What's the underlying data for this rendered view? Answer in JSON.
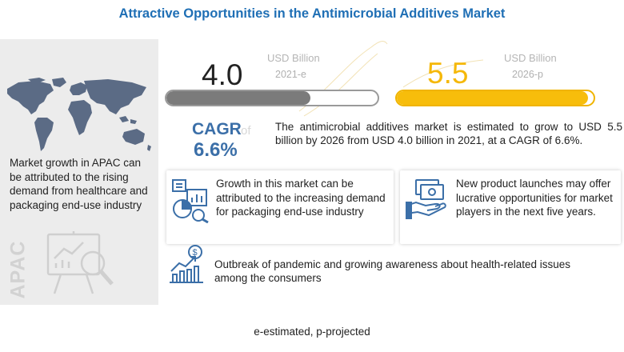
{
  "title": "Attractive Opportunities in the Antimicrobial Additives Market",
  "left_panel": {
    "text": "Market growth in APAC can be attributed to the rising demand from healthcare and packaging end-use industry",
    "region_label": "APAC",
    "map_icon": "world-map-icon",
    "board_icon": "presentation-board-magnifier-icon"
  },
  "market_size": {
    "current": {
      "value": "4.0",
      "unit": "USD Billion",
      "year": "2021-e",
      "fill_fraction": 0.68
    },
    "projected": {
      "value": "5.5",
      "unit": "USD Billion",
      "year": "2026-p",
      "fill_fraction": 0.97
    }
  },
  "cagr": {
    "label": "CAGR",
    "of": "of",
    "value": "6.6%",
    "summary": "The antimicrobial additives market is estimated to grow to USD 5.5 billion by 2026 from USD 4.0 billion in 2021, at a CAGR of 6.6%."
  },
  "insights": [
    {
      "icon": "packaging-analytics-icon",
      "text": "Growth in this market can be attributed to the increasing demand for packaging end-use industry"
    },
    {
      "icon": "money-hand-icon",
      "text": "New product launches may offer lucrative opportunities for market players in the next five years."
    },
    {
      "icon": "growth-chart-icon",
      "text": "Outbreak of pandemic and growing awareness about health-related issues among the consumers"
    }
  ],
  "footnote": "e-estimated, p-projected",
  "colors": {
    "title": "#1f6fb5",
    "accent_blue": "#3b6fa8",
    "gold": "#f7bd0b",
    "gray_bar": "#7b7b7b",
    "panel_gray": "#ececec"
  }
}
